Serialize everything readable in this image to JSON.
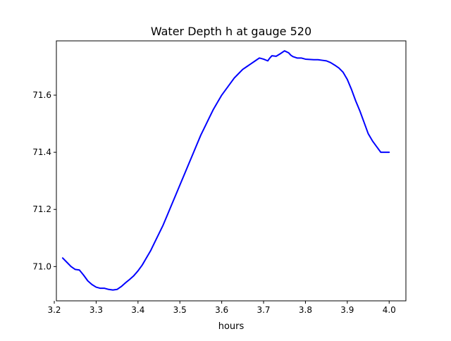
{
  "chart_data": {
    "type": "line",
    "title": "Water Depth h at gauge 520",
    "xlabel": "hours",
    "ylabel": "",
    "xlim": [
      3.205,
      4.04
    ],
    "ylim": [
      70.88,
      71.79
    ],
    "xticks": [
      3.2,
      3.3,
      3.4,
      3.5,
      3.6,
      3.7,
      3.8,
      3.9,
      4.0
    ],
    "xtick_labels": [
      "3.2",
      "3.3",
      "3.4",
      "3.5",
      "3.6",
      "3.7",
      "3.8",
      "3.9",
      "4.0"
    ],
    "yticks": [
      71.0,
      71.2,
      71.4,
      71.6
    ],
    "ytick_labels": [
      "71.0",
      "71.2",
      "71.4",
      "71.6"
    ],
    "grid": false,
    "series": [
      {
        "color": "#0000ff",
        "x": [
          3.22,
          3.23,
          3.24,
          3.25,
          3.26,
          3.27,
          3.28,
          3.29,
          3.3,
          3.31,
          3.32,
          3.33,
          3.34,
          3.35,
          3.36,
          3.37,
          3.38,
          3.39,
          3.4,
          3.41,
          3.42,
          3.43,
          3.44,
          3.45,
          3.46,
          3.47,
          3.48,
          3.49,
          3.5,
          3.51,
          3.52,
          3.53,
          3.54,
          3.55,
          3.56,
          3.57,
          3.58,
          3.59,
          3.6,
          3.61,
          3.62,
          3.63,
          3.64,
          3.65,
          3.66,
          3.67,
          3.68,
          3.69,
          3.7,
          3.71,
          3.715,
          3.72,
          3.73,
          3.74,
          3.75,
          3.76,
          3.765,
          3.77,
          3.78,
          3.79,
          3.8,
          3.81,
          3.82,
          3.83,
          3.84,
          3.85,
          3.86,
          3.87,
          3.88,
          3.89,
          3.9,
          3.91,
          3.92,
          3.93,
          3.94,
          3.95,
          3.96,
          3.97,
          3.98,
          3.99,
          4.0
        ],
        "y": [
          71.03,
          71.015,
          71.0,
          70.99,
          70.988,
          70.97,
          70.95,
          70.937,
          70.928,
          70.924,
          70.924,
          70.92,
          70.918,
          70.92,
          70.93,
          70.943,
          70.955,
          70.968,
          70.985,
          71.005,
          71.03,
          71.055,
          71.085,
          71.115,
          71.145,
          71.18,
          71.215,
          71.25,
          71.285,
          71.32,
          71.355,
          71.39,
          71.425,
          71.46,
          71.49,
          71.52,
          71.55,
          71.575,
          71.6,
          71.62,
          71.64,
          71.66,
          71.675,
          71.69,
          71.7,
          71.71,
          71.72,
          71.73,
          71.726,
          71.72,
          71.73,
          71.738,
          71.736,
          71.745,
          71.755,
          71.748,
          71.74,
          71.735,
          71.73,
          71.73,
          71.726,
          71.725,
          71.724,
          71.724,
          71.722,
          71.72,
          71.714,
          71.705,
          71.695,
          71.68,
          71.655,
          71.62,
          71.58,
          71.545,
          71.505,
          71.465,
          71.44,
          71.42,
          71.4,
          71.4,
          71.4
        ]
      }
    ]
  }
}
